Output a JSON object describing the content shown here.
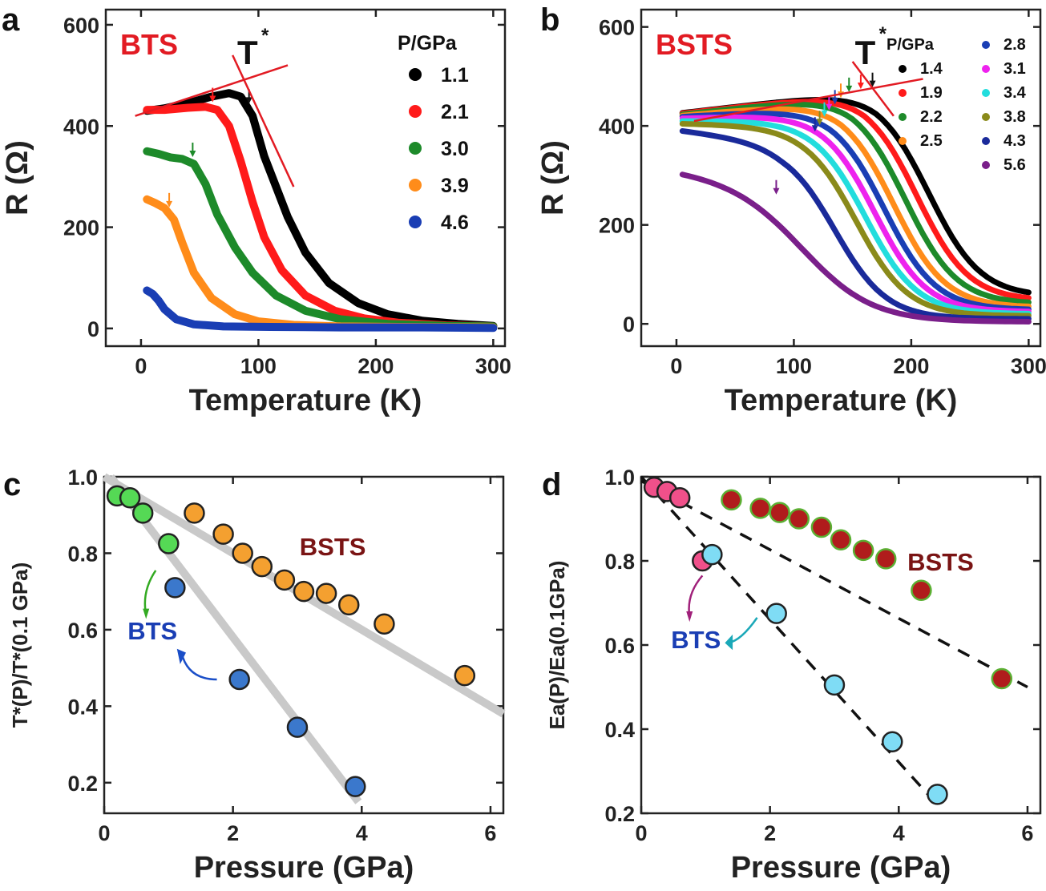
{
  "chart_data": [
    {
      "panel": "a",
      "type": "line",
      "sample": "BTS",
      "title_color": "#e21b23",
      "annotation": "T",
      "annotation_sup": "*",
      "xlabel": "Temperature (K)",
      "ylabel": "R (Ω)",
      "xlim": [
        -30,
        310
      ],
      "ylim": [
        -35,
        630
      ],
      "xticks": [
        0,
        100,
        200,
        300
      ],
      "yticks": [
        0,
        200,
        400,
        600
      ],
      "legend_title": "P/GPa",
      "series": [
        {
          "name": "1.1",
          "color": "#000000",
          "T": [
            5,
            20,
            40,
            60,
            75,
            85,
            95,
            105,
            115,
            125,
            140,
            160,
            185,
            210,
            240,
            270,
            300
          ],
          "R": [
            430,
            435,
            445,
            458,
            465,
            458,
            420,
            340,
            280,
            220,
            150,
            90,
            50,
            28,
            15,
            9,
            5
          ],
          "tstar": 92
        },
        {
          "name": "2.1",
          "color": "#ff1a1a",
          "T": [
            5,
            20,
            40,
            55,
            65,
            75,
            85,
            95,
            105,
            120,
            140,
            165,
            190,
            220,
            260,
            300
          ],
          "R": [
            432,
            432,
            436,
            438,
            432,
            400,
            330,
            250,
            180,
            115,
            65,
            35,
            20,
            11,
            6,
            4
          ],
          "tstar": 61
        },
        {
          "name": "3.0",
          "color": "#1d8a2a",
          "T": [
            5,
            15,
            25,
            35,
            45,
            55,
            65,
            80,
            95,
            115,
            140,
            170,
            210,
            260,
            300
          ],
          "R": [
            350,
            345,
            338,
            335,
            325,
            285,
            225,
            160,
            110,
            65,
            35,
            18,
            9,
            5,
            4
          ],
          "tstar": 44
        },
        {
          "name": "3.9",
          "color": "#ff8c1a",
          "T": [
            5,
            12,
            20,
            28,
            35,
            45,
            60,
            80,
            100,
            130,
            170,
            220,
            300
          ],
          "R": [
            255,
            248,
            238,
            215,
            170,
            110,
            60,
            28,
            14,
            7,
            4,
            3,
            2
          ],
          "tstar": 24
        },
        {
          "name": "4.6",
          "color": "#1a3eb4",
          "T": [
            5,
            10,
            15,
            20,
            30,
            45,
            70,
            110,
            170,
            240,
            300
          ],
          "R": [
            75,
            68,
            55,
            38,
            18,
            8,
            4,
            3,
            2,
            2,
            1
          ],
          "tstar": null
        }
      ]
    },
    {
      "panel": "b",
      "type": "line",
      "sample": "BSTS",
      "title_color": "#e21b23",
      "annotation": "T",
      "annotation_sup": "*",
      "xlabel": "Temperature (K)",
      "ylabel": "R (Ω)",
      "xlim": [
        -30,
        310
      ],
      "ylim": [
        -45,
        635
      ],
      "xticks": [
        0,
        100,
        200,
        300
      ],
      "yticks": [
        0,
        200,
        400,
        600
      ],
      "legend_title": "P/GPa",
      "series": [
        {
          "name": "1.4",
          "color": "#000000",
          "shift": 0,
          "base": 425,
          "peak": 472,
          "tail": 55,
          "tstar": 167
        },
        {
          "name": "1.9",
          "color": "#ff1a1a",
          "shift": 10,
          "base": 424,
          "peak": 468,
          "tail": 47,
          "tstar": 157
        },
        {
          "name": "2.2",
          "color": "#1d8a2a",
          "shift": 20,
          "base": 422,
          "peak": 462,
          "tail": 40,
          "tstar": 147
        },
        {
          "name": "2.5",
          "color": "#ff8c1a",
          "shift": 30,
          "base": 420,
          "peak": 450,
          "tail": 33,
          "tstar": 140
        },
        {
          "name": "2.8",
          "color": "#1a3eb4",
          "shift": 38,
          "base": 418,
          "peak": 437,
          "tail": 28,
          "tstar": 135
        },
        {
          "name": "3.1",
          "color": "#ee22ee",
          "shift": 46,
          "base": 415,
          "peak": 425,
          "tail": 24,
          "tstar": 130
        },
        {
          "name": "3.4",
          "color": "#22dddd",
          "shift": 54,
          "base": 410,
          "peak": 412,
          "tail": 20,
          "tstar": 126
        },
        {
          "name": "3.8",
          "color": "#8a8a1a",
          "shift": 62,
          "base": 405,
          "peak": 400,
          "tail": 16,
          "tstar": 122
        },
        {
          "name": "4.3",
          "color": "#1a2a9a",
          "shift": 80,
          "base": 392,
          "peak": 368,
          "tail": 10,
          "tstar": 118
        },
        {
          "name": "5.6",
          "color": "#7a1f8a",
          "shift": 120,
          "base": 312,
          "peak": 230,
          "tail": 4,
          "tstar": 85
        }
      ]
    },
    {
      "panel": "c",
      "type": "scatter",
      "xlabel": "Pressure (GPa)",
      "ylabel": "T*(P)/T*(0.1 GPa)",
      "xlim": [
        0,
        6.2
      ],
      "ylim": [
        0.12,
        1.0
      ],
      "xticks": [
        0,
        2,
        4,
        6
      ],
      "yticks": [
        0.2,
        0.4,
        0.6,
        0.8,
        1.0
      ],
      "series": [
        {
          "name": "BTS",
          "label_color": "#1a3eb4",
          "color": "#3b78cc",
          "x": [
            0.2,
            0.4,
            0.6,
            1.0,
            1.1,
            2.1,
            3.0,
            3.9
          ],
          "y": [
            0.95,
            0.945,
            0.905,
            0.825,
            0.71,
            0.47,
            0.345,
            0.19
          ],
          "colors": [
            "#55d955",
            "#55d955",
            "#55d955",
            "#55d955",
            "#3b78cc",
            "#3b78cc",
            "#3b78cc",
            "#3b78cc"
          ],
          "fit": [
            [
              0.1,
              1.0
            ],
            [
              3.95,
              0.15
            ]
          ]
        },
        {
          "name": "BSTS",
          "label_color": "#7a1414",
          "color": "#f4a030",
          "x": [
            1.4,
            1.85,
            2.15,
            2.45,
            2.8,
            3.1,
            3.45,
            3.8,
            4.35,
            5.6
          ],
          "y": [
            0.905,
            0.85,
            0.8,
            0.765,
            0.73,
            0.7,
            0.695,
            0.665,
            0.615,
            0.48
          ],
          "fit": [
            [
              0.0,
              1.0
            ],
            [
              6.2,
              0.38
            ]
          ]
        }
      ]
    },
    {
      "panel": "d",
      "type": "scatter",
      "xlabel": "Pressure (GPa)",
      "ylabel": "Ea(P)/Ea(0.1GPa)",
      "xlim": [
        0,
        6.2
      ],
      "ylim": [
        0.2,
        1.0
      ],
      "xticks": [
        0,
        2,
        4,
        6
      ],
      "yticks": [
        0.2,
        0.4,
        0.6,
        0.8,
        1.0
      ],
      "series": [
        {
          "name": "BTS",
          "label_color": "#1a3eb4",
          "color": "#7fdcf5",
          "x": [
            0.2,
            0.4,
            0.6,
            0.95,
            1.1,
            2.1,
            3.0,
            3.9,
            4.6
          ],
          "y": [
            0.975,
            0.965,
            0.95,
            0.8,
            0.815,
            0.675,
            0.505,
            0.37,
            0.245
          ],
          "colors": [
            "#f0508a",
            "#f0508a",
            "#f0508a",
            "#f0508a",
            "#7fdcf5",
            "#7fdcf5",
            "#7fdcf5",
            "#7fdcf5",
            "#7fdcf5"
          ],
          "fit": [
            [
              0.0,
              1.0
            ],
            [
              4.6,
              0.22
            ]
          ]
        },
        {
          "name": "BSTS",
          "label_color": "#7a1414",
          "color": "#b01c1c",
          "x": [
            1.4,
            1.85,
            2.15,
            2.45,
            2.8,
            3.1,
            3.45,
            3.8,
            4.35,
            5.6
          ],
          "y": [
            0.945,
            0.925,
            0.915,
            0.9,
            0.88,
            0.85,
            0.825,
            0.805,
            0.73,
            0.52
          ],
          "fit": [
            [
              0.0,
              0.99
            ],
            [
              6.0,
              0.5
            ]
          ]
        }
      ]
    }
  ],
  "labels": {
    "panel_a": "a",
    "panel_b": "b",
    "panel_c": "c",
    "panel_d": "d"
  }
}
